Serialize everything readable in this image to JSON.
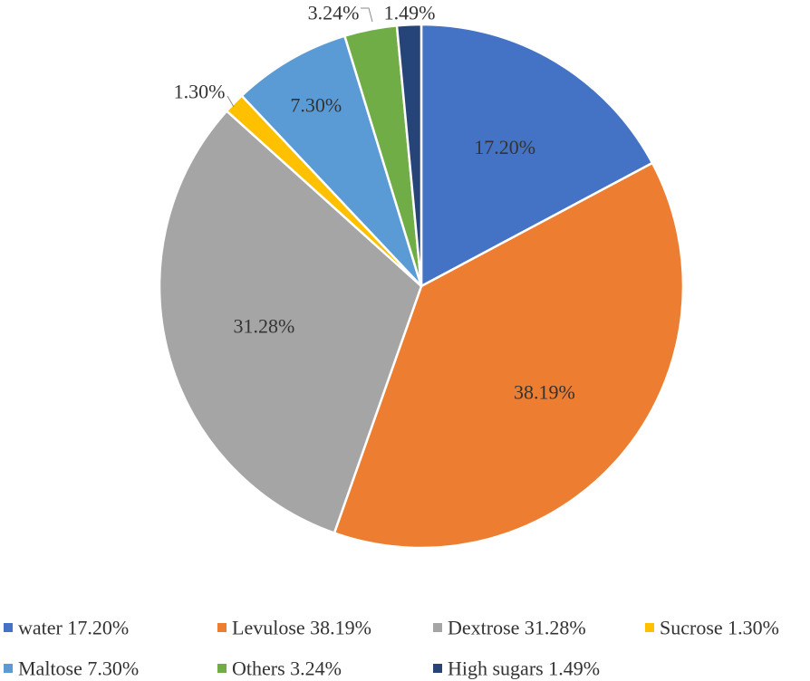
{
  "chart_data": {
    "type": "pie",
    "title": "",
    "start_angle_deg": 0,
    "direction": "clockwise",
    "slices": [
      {
        "label": "water",
        "value": 17.2,
        "data_label": "17.20%",
        "legend": "water 17.20%",
        "color": "#4472C4"
      },
      {
        "label": "Levulose",
        "value": 38.19,
        "data_label": "38.19%",
        "legend": "Levulose 38.19%",
        "color": "#ED7D31"
      },
      {
        "label": "Dextrose",
        "value": 31.28,
        "data_label": "31.28%",
        "legend": "Dextrose 31.28%",
        "color": "#A5A5A5"
      },
      {
        "label": "Sucrose",
        "value": 1.3,
        "data_label": "1.30%",
        "legend": "Sucrose 1.30%",
        "color": "#FFC000"
      },
      {
        "label": "Maltose",
        "value": 7.3,
        "data_label": "7.30%",
        "legend": "Maltose 7.30%",
        "color": "#5B9BD5"
      },
      {
        "label": "Others",
        "value": 3.24,
        "data_label": "3.24%",
        "legend": "Others 3.24%",
        "color": "#70AD47"
      },
      {
        "label": "High sugars",
        "value": 1.49,
        "data_label": "1.49%",
        "legend": "High sugars 1.49%",
        "color": "#264478"
      }
    ],
    "legend_position": "bottom"
  }
}
